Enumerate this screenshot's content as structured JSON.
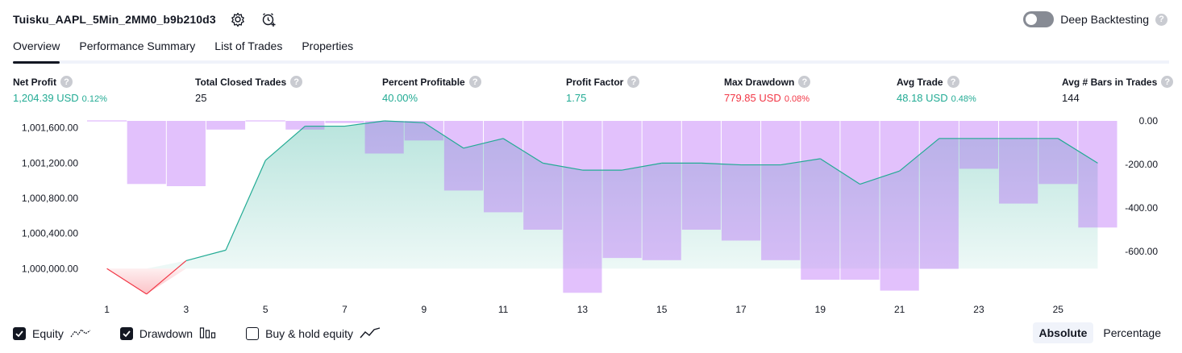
{
  "header": {
    "title": "Tuisku_AAPL_5Min_2MM0_b9b210d3",
    "settings_icon": "gear-icon",
    "add_alert_icon": "alert-clock-icon",
    "deep_backtesting_label": "Deep Backtesting",
    "help_glyph": "?"
  },
  "tabs": [
    {
      "label": "Overview",
      "active": true
    },
    {
      "label": "Performance Summary",
      "active": false
    },
    {
      "label": "List of Trades",
      "active": false
    },
    {
      "label": "Properties",
      "active": false
    }
  ],
  "metrics": [
    {
      "label": "Net Profit",
      "value": "1,204.39 USD",
      "pct": "0.12%",
      "color": "#22ab94"
    },
    {
      "label": "Total Closed Trades",
      "value": "25",
      "pct": "",
      "color": "#131722"
    },
    {
      "label": "Percent Profitable",
      "value": "40.00%",
      "pct": "",
      "color": "#22ab94"
    },
    {
      "label": "Profit Factor",
      "value": "1.75",
      "pct": "",
      "color": "#22ab94"
    },
    {
      "label": "Max Drawdown",
      "value": "779.85 USD",
      "pct": "0.08%",
      "color": "#f23645"
    },
    {
      "label": "Avg Trade",
      "value": "48.18 USD",
      "pct": "0.48%",
      "color": "#22ab94"
    },
    {
      "label": "Avg # Bars in Trades",
      "value": "144",
      "pct": "",
      "color": "#131722"
    }
  ],
  "chart_data": {
    "type": "area",
    "x": [
      1,
      2,
      3,
      4,
      5,
      6,
      7,
      8,
      9,
      10,
      11,
      12,
      13,
      14,
      15,
      16,
      17,
      18,
      19,
      20,
      21,
      22,
      23,
      24,
      25,
      26
    ],
    "x_ticks": [
      "1",
      "3",
      "5",
      "7",
      "9",
      "11",
      "13",
      "15",
      "17",
      "19",
      "21",
      "23",
      "25"
    ],
    "y_left_ticks": [
      "1,001,600.00",
      "1,001,200.00",
      "1,000,800.00",
      "1,000,400.00",
      "1,000,000.00"
    ],
    "y_left_range": [
      999700,
      1001680
    ],
    "y_right_ticks": [
      "0.00",
      "-200.00",
      "-400.00",
      "-600.00"
    ],
    "y_right_range": [
      -800,
      0
    ],
    "series": [
      {
        "name": "Equity",
        "color": "#22ab94",
        "values": [
          1000000,
          999710,
          1000090,
          1000210,
          1001230,
          1001620,
          1001620,
          1001680,
          1001660,
          1001370,
          1001480,
          1001200,
          1001120,
          1001120,
          1001200,
          1001200,
          1001180,
          1001180,
          1001250,
          1000960,
          1001110,
          1001480,
          1001480,
          1001480,
          1001480,
          1001200
        ]
      },
      {
        "name": "Drawdown",
        "color": "#d4a6f8",
        "values": [
          0,
          -290,
          -300,
          -40,
          0,
          -40,
          -10,
          -150,
          -90,
          -320,
          -420,
          -500,
          -790,
          -630,
          -640,
          -500,
          -550,
          -640,
          -730,
          -730,
          -780,
          -680,
          -220,
          -380,
          -290,
          -490
        ]
      }
    ]
  },
  "legend": [
    {
      "label": "Equity",
      "checked": true,
      "icon": "equity-line-icon"
    },
    {
      "label": "Drawdown",
      "checked": true,
      "icon": "drawdown-bars-icon"
    },
    {
      "label": "Buy & hold equity",
      "checked": false,
      "icon": "buy-hold-line-icon"
    }
  ],
  "display_modes": [
    {
      "label": "Absolute",
      "selected": true
    },
    {
      "label": "Percentage",
      "selected": false
    }
  ]
}
